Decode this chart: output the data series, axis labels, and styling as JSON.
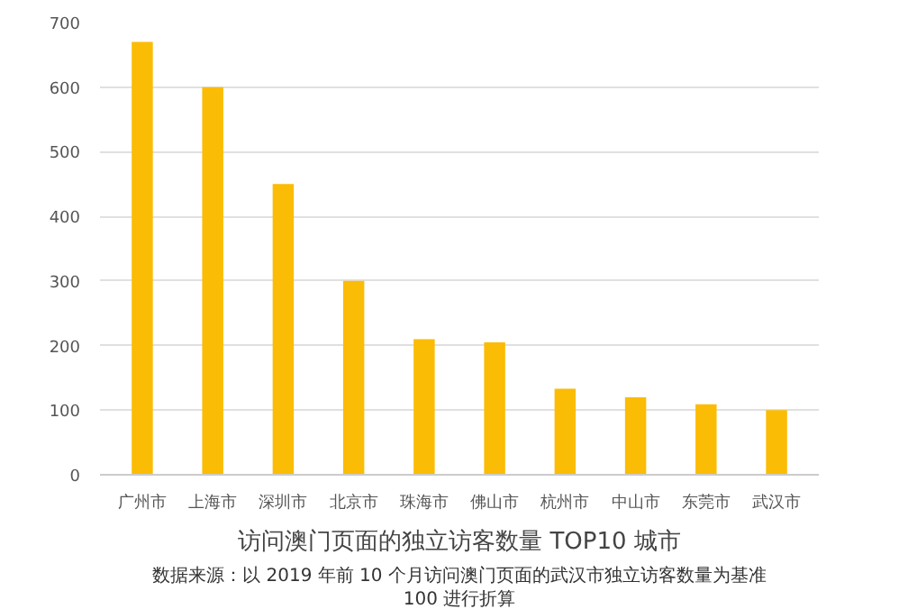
{
  "chart_data": {
    "type": "bar",
    "title": "访问澳门页面的独立访客数量 TOP10 城市",
    "categories": [
      "广州市",
      "上海市",
      "深圳市",
      "北京市",
      "珠海市",
      "佛山市",
      "杭州市",
      "中山市",
      "东莞市",
      "武汉市"
    ],
    "values": [
      670,
      600,
      450,
      300,
      210,
      205,
      133,
      120,
      109,
      100
    ],
    "color": "#fbbc05",
    "ylim": [
      0,
      700
    ],
    "yticks": [
      0,
      100,
      200,
      300,
      400,
      500,
      600,
      700
    ],
    "grid": "y",
    "annotations": [
      "数据来源：以 2019 年前 10 个月访问澳门页面的武汉市独立访客数量为基准 100 进行折算"
    ]
  }
}
